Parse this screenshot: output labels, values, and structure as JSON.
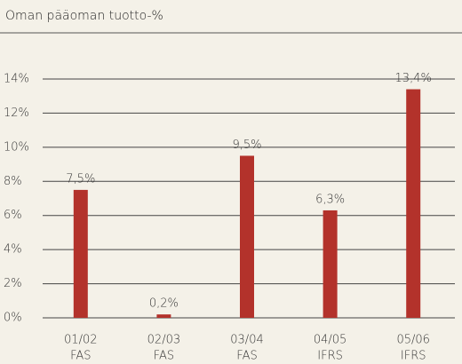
{
  "chart_data": {
    "type": "bar",
    "title": "Oman pääoman tuotto-%",
    "categories": [
      "01/02",
      "02/03",
      "03/04",
      "04/05",
      "05/06"
    ],
    "category_groups": [
      "FAS",
      "FAS",
      "FAS",
      "IFRS",
      "IFRS"
    ],
    "values": [
      7.5,
      0.2,
      9.5,
      6.3,
      13.4
    ],
    "value_labels": [
      "7,5%",
      "0,2%",
      "9,5%",
      "6,3%",
      "13,4%"
    ],
    "color": "#b3322b",
    "ylim": [
      0,
      14
    ],
    "yticks": [
      {
        "value": 0,
        "label": "0%"
      },
      {
        "value": 2,
        "label": "2%"
      },
      {
        "value": 4,
        "label": "4%"
      },
      {
        "value": 6,
        "label": "6%"
      },
      {
        "value": 8,
        "label": "8%"
      },
      {
        "value": 10,
        "label": "10%"
      },
      {
        "value": 12,
        "label": "12%"
      },
      {
        "value": 14,
        "label": "14%"
      }
    ],
    "grid": true
  }
}
